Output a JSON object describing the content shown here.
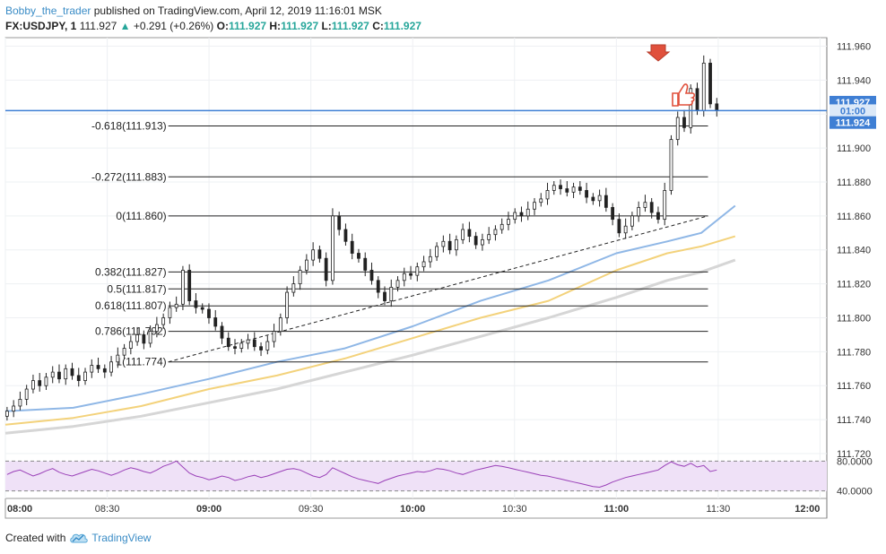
{
  "header": {
    "author": "Bobby_the_trader",
    "published": "published on TradingView.com, April 12, 2019 11:16:01 MSK",
    "symbol": "FX:USDJPY, 1",
    "last": "111.927",
    "change": "+0.291 (+0.26%)",
    "o_label": "O:",
    "o_val": "111.927",
    "h_label": "H:",
    "h_val": "111.927",
    "l_label": "L:",
    "l_val": "111.927",
    "c_label": "C:",
    "c_val": "111.927"
  },
  "footer": {
    "created": "Created with",
    "brand": "TradingView"
  },
  "colors": {
    "up_candle": "#ffffff",
    "down_candle": "#222222",
    "ma_fast": "#8fb7e6",
    "ma_mid": "#f3d27b",
    "ma_slow": "#d6d6d6",
    "price_line": "#3f7fd4",
    "rsi_fill": "#efe1f7",
    "rsi_line": "#9a40b8",
    "arrow": "#e0503c",
    "thumb": "#e0503c"
  },
  "icons": {
    "arrow": "red-down-arrow-icon",
    "thumb": "thumbs-up-icon",
    "logo": "tradingview-cloud-icon"
  },
  "chart_data": {
    "type": "candlestick",
    "ylim": [
      111.72,
      111.965
    ],
    "y_ticks": [
      "111.720",
      "111.740",
      "111.760",
      "111.780",
      "111.800",
      "111.820",
      "111.840",
      "111.860",
      "111.880",
      "111.900",
      "111.920",
      "111.940",
      "111.960"
    ],
    "x_ticks": [
      "08:00",
      "08:30",
      "09:00",
      "09:30",
      "10:00",
      "10:30",
      "11:00",
      "11:30",
      "12:00"
    ],
    "x_range_minutes": [
      480,
      722
    ],
    "price_labels": [
      {
        "text": "111.927",
        "price": 111.927,
        "style": "solid"
      },
      {
        "text": "01:00",
        "price": 111.922,
        "style": "light"
      },
      {
        "text": "111.924",
        "price": 111.915,
        "style": "solid"
      }
    ],
    "fib_levels": [
      {
        "label": "-0.618(111.913)",
        "price": 111.913
      },
      {
        "label": "-0.272(111.883)",
        "price": 111.883
      },
      {
        "label": "0(111.860)",
        "price": 111.86
      },
      {
        "label": "0.382(111.827)",
        "price": 111.827
      },
      {
        "label": "0.5(111.817)",
        "price": 111.817
      },
      {
        "label": "0.618(111.807)",
        "price": 111.807
      },
      {
        "label": "0.786(111.792)",
        "price": 111.792
      },
      {
        "label": "1(111.774)",
        "price": 111.774
      }
    ],
    "fib_x_start_min": 528,
    "fib_x_end_min": 687,
    "current_price_line": 111.922,
    "trendline": [
      [
        528,
        111.774
      ],
      [
        687,
        111.86
      ]
    ],
    "closes": [
      111.745,
      111.748,
      111.752,
      111.758,
      111.763,
      111.76,
      111.765,
      111.768,
      111.764,
      111.77,
      111.766,
      111.763,
      111.768,
      111.772,
      111.77,
      111.768,
      111.774,
      111.778,
      111.782,
      111.786,
      111.79,
      111.785,
      111.792,
      111.796,
      111.8,
      111.806,
      111.808,
      111.828,
      111.81,
      111.806,
      111.805,
      111.8,
      111.795,
      111.788,
      111.783,
      111.782,
      111.785,
      111.787,
      111.783,
      111.781,
      111.786,
      111.792,
      111.8,
      111.815,
      111.82,
      111.828,
      111.834,
      111.84,
      111.835,
      111.822,
      111.86,
      111.852,
      111.845,
      111.838,
      111.835,
      111.828,
      111.822,
      111.815,
      111.81,
      111.818,
      111.822,
      111.826,
      111.825,
      111.83,
      111.833,
      111.836,
      111.842,
      111.845,
      111.84,
      111.846,
      111.852,
      111.848,
      111.843,
      111.846,
      111.849,
      111.852,
      111.855,
      111.858,
      111.862,
      111.86,
      111.864,
      111.868,
      111.87,
      111.875,
      111.878,
      111.876,
      111.874,
      111.877,
      111.875,
      111.871,
      111.869,
      111.872,
      111.865,
      111.858,
      111.85,
      111.854,
      111.86,
      111.865,
      111.868,
      111.862,
      111.858,
      111.875,
      111.905,
      111.918,
      111.912,
      111.935,
      111.922,
      111.95,
      111.926,
      111.922
    ],
    "ma_fast": [
      [
        480,
        111.745
      ],
      [
        500,
        111.747
      ],
      [
        520,
        111.755
      ],
      [
        540,
        111.764
      ],
      [
        560,
        111.774
      ],
      [
        580,
        111.782
      ],
      [
        600,
        111.795
      ],
      [
        620,
        111.81
      ],
      [
        640,
        111.822
      ],
      [
        660,
        111.838
      ],
      [
        675,
        111.845
      ],
      [
        685,
        111.85
      ],
      [
        695,
        111.866
      ]
    ],
    "ma_mid": [
      [
        480,
        111.737
      ],
      [
        500,
        111.741
      ],
      [
        520,
        111.748
      ],
      [
        540,
        111.758
      ],
      [
        560,
        111.766
      ],
      [
        580,
        111.776
      ],
      [
        600,
        111.788
      ],
      [
        620,
        111.8
      ],
      [
        640,
        111.81
      ],
      [
        660,
        111.828
      ],
      [
        675,
        111.838
      ],
      [
        685,
        111.842
      ],
      [
        695,
        111.848
      ]
    ],
    "ma_slow": [
      [
        480,
        111.732
      ],
      [
        500,
        111.736
      ],
      [
        520,
        111.742
      ],
      [
        540,
        111.75
      ],
      [
        560,
        111.758
      ],
      [
        580,
        111.768
      ],
      [
        600,
        111.778
      ],
      [
        620,
        111.789
      ],
      [
        640,
        111.8
      ],
      [
        660,
        111.812
      ],
      [
        675,
        111.822
      ],
      [
        685,
        111.827
      ],
      [
        695,
        111.834
      ]
    ],
    "rsi": {
      "ticks": [
        "80.0000",
        "40.0000"
      ],
      "levels": [
        80,
        40
      ],
      "ylim": [
        30,
        90
      ],
      "values": [
        62,
        66,
        68,
        64,
        60,
        63,
        67,
        70,
        65,
        62,
        60,
        63,
        66,
        69,
        67,
        64,
        61,
        64,
        68,
        71,
        69,
        66,
        64,
        68,
        73,
        76,
        80,
        72,
        64,
        60,
        58,
        55,
        57,
        60,
        58,
        54,
        56,
        59,
        61,
        58,
        60,
        63,
        66,
        69,
        70,
        68,
        64,
        60,
        58,
        62,
        71,
        67,
        63,
        59,
        56,
        54,
        52,
        50,
        54,
        57,
        60,
        62,
        64,
        66,
        65,
        67,
        70,
        69,
        67,
        64,
        62,
        65,
        68,
        70,
        72,
        74,
        73,
        71,
        69,
        67,
        65,
        63,
        61,
        60,
        58,
        56,
        54,
        52,
        50,
        48,
        46,
        45,
        48,
        52,
        55,
        58,
        60,
        62,
        64,
        66,
        68,
        74,
        79,
        75,
        73,
        77,
        72,
        74,
        66,
        68
      ]
    }
  }
}
